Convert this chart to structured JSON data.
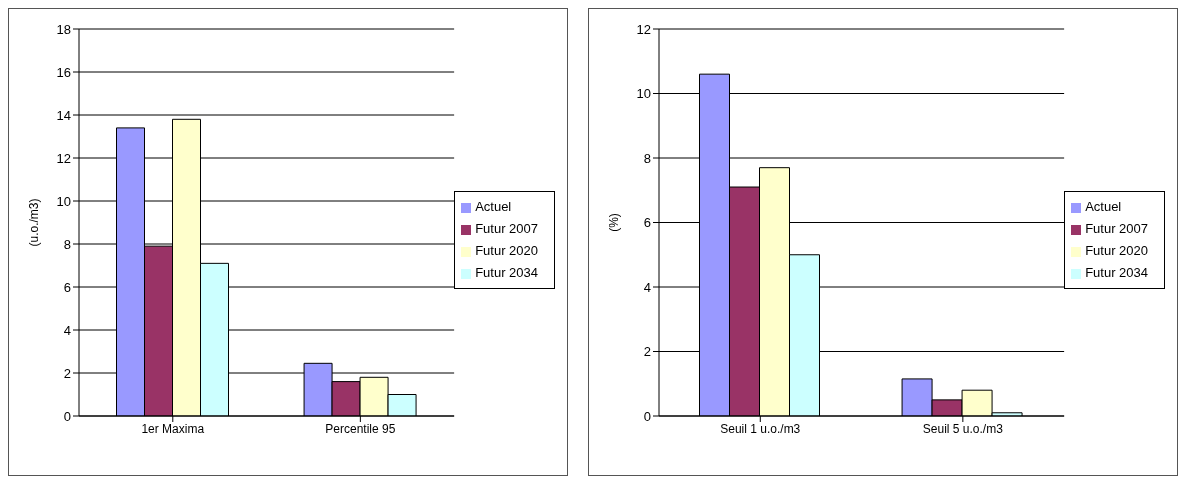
{
  "chart_data": [
    {
      "type": "bar",
      "ylabel": "(u.o./m3)",
      "categories": [
        "1er Maxima",
        "Percentile 95"
      ],
      "series": [
        {
          "name": "Actuel",
          "color": "#9999ff",
          "values": [
            13.4,
            2.45
          ]
        },
        {
          "name": "Futur 2007",
          "color": "#993366",
          "values": [
            7.9,
            1.6
          ]
        },
        {
          "name": "Futur 2020",
          "color": "#ffffcc",
          "values": [
            13.8,
            1.8
          ]
        },
        {
          "name": "Futur 2034",
          "color": "#ccffff",
          "values": [
            7.1,
            1.0
          ]
        }
      ],
      "ylim": [
        0,
        18
      ],
      "yticks": [
        0,
        2,
        4,
        6,
        8,
        10,
        12,
        14,
        16,
        18
      ],
      "grid": "y",
      "legend": "right"
    },
    {
      "type": "bar",
      "ylabel": "(%)",
      "categories": [
        "Seuil 1 u.o./m3",
        "Seuil 5 u.o./m3"
      ],
      "series": [
        {
          "name": "Actuel",
          "color": "#9999ff",
          "values": [
            10.6,
            1.15
          ]
        },
        {
          "name": "Futur 2007",
          "color": "#993366",
          "values": [
            7.1,
            0.5
          ]
        },
        {
          "name": "Futur 2020",
          "color": "#ffffcc",
          "values": [
            7.7,
            0.8
          ]
        },
        {
          "name": "Futur 2034",
          "color": "#ccffff",
          "values": [
            5.0,
            0.1
          ]
        }
      ],
      "ylim": [
        0,
        12
      ],
      "yticks": [
        0,
        2,
        4,
        6,
        8,
        10,
        12
      ],
      "grid": "y",
      "legend": "right"
    }
  ]
}
